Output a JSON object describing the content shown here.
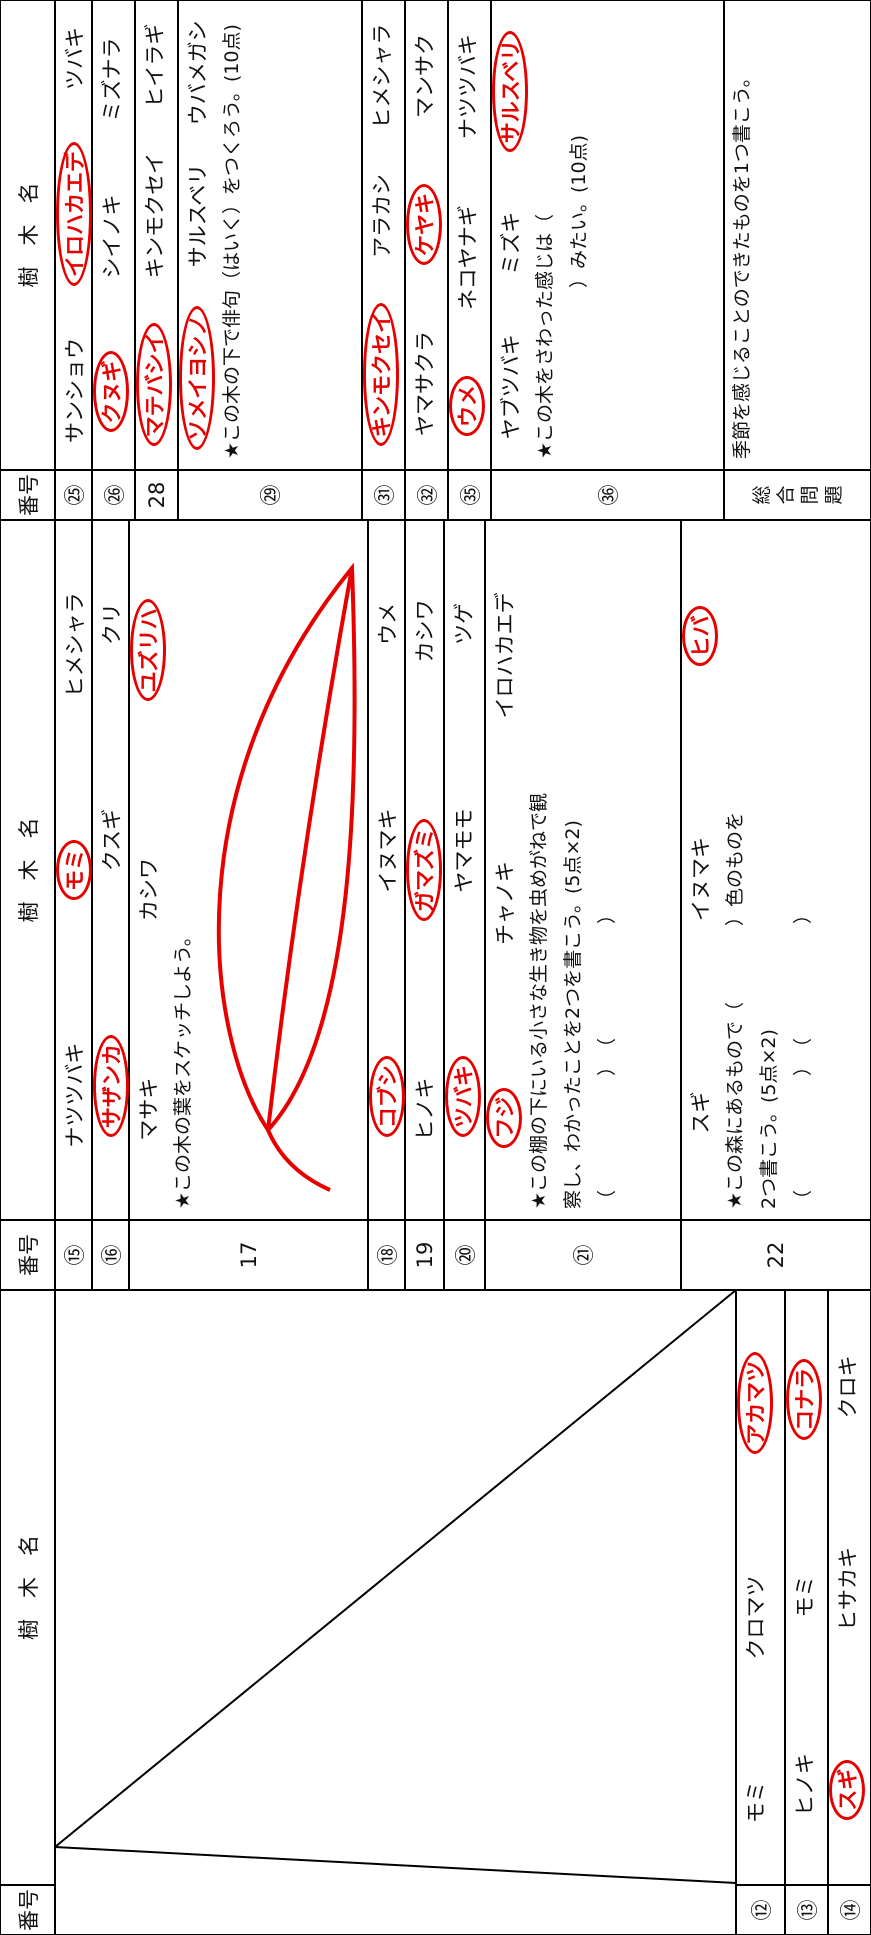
{
  "panels": [
    {
      "header": {
        "number": "番号",
        "name": "樹　木　名"
      },
      "rows": [
        {
          "number": "⑫",
          "items": [
            {
              "text": "モミ"
            },
            {
              "text": "クロマツ"
            },
            {
              "text": "アカマツ",
              "circled": true
            }
          ]
        },
        {
          "number": "⑬",
          "items": [
            {
              "text": "ヒノキ"
            },
            {
              "text": "モミ"
            },
            {
              "text": "コナラ",
              "circled": true
            }
          ]
        },
        {
          "number": "⑭",
          "items": [
            {
              "text": "スギ",
              "circled": true
            },
            {
              "text": "ヒサカキ"
            },
            {
              "text": "クロキ"
            }
          ]
        }
      ]
    },
    {
      "header": {
        "number": "番号",
        "name": "樹　木　名"
      },
      "rows": [
        {
          "number": "⑮",
          "items": [
            {
              "text": "ナツツバキ"
            },
            {
              "text": "モミ",
              "circled": true
            },
            {
              "text": "ヒメシャラ"
            }
          ]
        },
        {
          "number": "⑯",
          "items": [
            {
              "text": "サザンカ",
              "circled": true
            },
            {
              "text": "クスギ"
            },
            {
              "text": "クリ"
            }
          ]
        },
        {
          "number": "17",
          "items": [
            {
              "text": "マサキ"
            },
            {
              "text": "カシワ"
            },
            {
              "text": "ユズリハ",
              "circled": true
            }
          ],
          "prompt": [
            "★この木の葉をスケッチしよう。"
          ]
        },
        {
          "number": "⑱",
          "items": [
            {
              "text": "コブシ",
              "circled": true
            },
            {
              "text": "イヌマキ"
            },
            {
              "text": "ウメ"
            }
          ]
        },
        {
          "number": "19",
          "items": [
            {
              "text": "ヒノキ"
            },
            {
              "text": "ガマズミ",
              "circled": true
            },
            {
              "text": "カシワ"
            }
          ]
        },
        {
          "number": "⑳",
          "items": [
            {
              "text": "ツバキ",
              "circled": true
            },
            {
              "text": "ヤマモモ"
            },
            {
              "text": "ツゲ"
            }
          ]
        },
        {
          "number": "㉑",
          "items": [
            {
              "text": "フジ",
              "circled": true
            },
            {
              "text": "チャノキ"
            },
            {
              "text": "イロハカエデ"
            }
          ],
          "prompt": [
            "★この棚の下にいる小さな生き物を虫めがねで観",
            "察し、わかったことを2つを書こう。(5点×2)",
            "（　　　　　　）　（　　　　　　）"
          ]
        },
        {
          "number": "22",
          "items": [
            {
              "text": "スギ"
            },
            {
              "text": "イヌマキ"
            },
            {
              "text": "ヒバ",
              "circled": true
            }
          ],
          "prompt": [
            "★この森にあるもので（　　　　）色のものを",
            "2つ書こう。(5点×2)",
            "（　　　　　　）　（　　　　　　）"
          ]
        }
      ]
    },
    {
      "header": {
        "number": "番号",
        "name": "樹　木　名"
      },
      "rows": [
        {
          "number": "㉕",
          "items": [
            {
              "text": "サンショウ"
            },
            {
              "text": "イロハカエデ",
              "circled": true
            },
            {
              "text": "ツバキ"
            }
          ]
        },
        {
          "number": "㉖",
          "items": [
            {
              "text": "クヌギ",
              "circled": true
            },
            {
              "text": "シイノキ"
            },
            {
              "text": "ミズナラ"
            }
          ]
        },
        {
          "number": "28",
          "items": [
            {
              "text": "マテバシイ",
              "circled": true
            },
            {
              "text": "キンモクセイ"
            },
            {
              "text": "ヒイラギ"
            }
          ]
        },
        {
          "number": "㉙",
          "items": [
            {
              "text": "ソメイヨシノ",
              "circled": true
            },
            {
              "text": "サルスベリ"
            },
            {
              "text": "ウバメガシ"
            }
          ],
          "prompt": [
            "★この木の下で俳句（はいく）をつくろう。(10点)"
          ]
        },
        {
          "number": "㉛",
          "items": [
            {
              "text": "キンモクセイ",
              "circled": true
            },
            {
              "text": "アラカシ"
            },
            {
              "text": "ヒメシャラ"
            }
          ]
        },
        {
          "number": "㉜",
          "items": [
            {
              "text": "ヤマサクラ"
            },
            {
              "text": "ケヤキ",
              "circled": true
            },
            {
              "text": "マンサク"
            }
          ]
        },
        {
          "number": "㉟",
          "items": [
            {
              "text": "ウメ",
              "circled": true
            },
            {
              "text": "ネコヤナギ"
            },
            {
              "text": "ナツツバキ"
            }
          ]
        },
        {
          "number": "㊱",
          "items": [
            {
              "text": "ヤブツバキ"
            },
            {
              "text": "ミズキ"
            },
            {
              "text": "サルスベリ",
              "circled": true
            }
          ],
          "prompt": [
            "★この木をさわった感じは（",
            "　　　　　　　　　）みたい。(10点)"
          ]
        },
        {
          "number": "総合問題",
          "items": [],
          "prompt": [
            "季節を感じることのできたものを1つ書こう。"
          ]
        }
      ]
    }
  ]
}
